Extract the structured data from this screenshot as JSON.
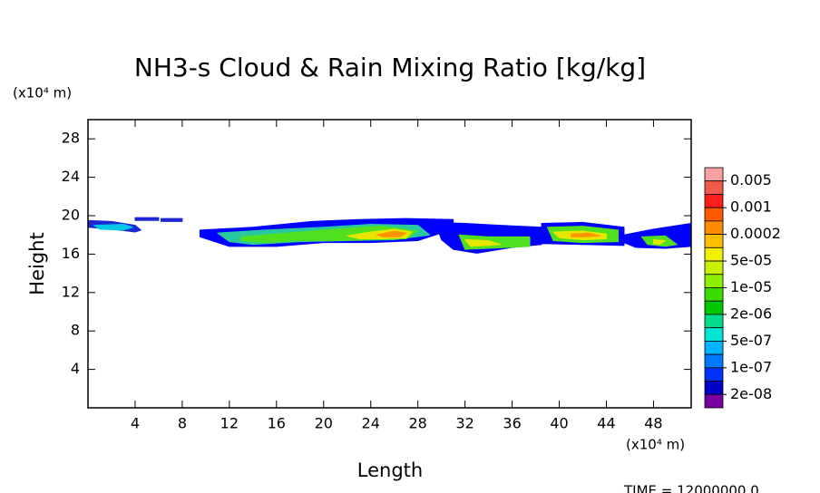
{
  "chart_data": {
    "type": "contour",
    "title": "NH3-s Cloud & Rain Mixing Ratio [kg/kg]",
    "x_label": "Length",
    "y_label": "Height",
    "x_unit": "(x10⁴ m)",
    "y_unit": "(x10⁴ m)",
    "footer": "TIME = 12000000.0",
    "xlim": [
      0,
      51.2
    ],
    "ylim": [
      0,
      30
    ],
    "xticks": [
      4,
      8,
      12,
      16,
      20,
      24,
      28,
      32,
      36,
      40,
      44,
      48
    ],
    "yticks": [
      4,
      8,
      12,
      16,
      20,
      24,
      28
    ],
    "colorbar": {
      "colors": [
        "#f8a0a0",
        "#f05a4a",
        "#ff1e1e",
        "#ff5a00",
        "#ff8c00",
        "#ffbe00",
        "#f0f000",
        "#c8f000",
        "#8cf000",
        "#3cdc00",
        "#00c800",
        "#00dc8c",
        "#00e6d2",
        "#00b4ff",
        "#0078ff",
        "#0032ff",
        "#0000c8",
        "#7800a0"
      ],
      "levels": [
        0.005,
        0.001,
        0.0002,
        {
          "value": 5e-05,
          "label": "5e-05"
        },
        {
          "value": 1e-05,
          "label": "1e-05"
        },
        {
          "value": 2e-06,
          "label": "2e-06"
        },
        {
          "value": 5e-07,
          "label": "5e-07"
        },
        {
          "value": 1e-07,
          "label": "1e-07"
        },
        {
          "value": 2e-08,
          "label": "2e-08"
        }
      ]
    },
    "shapes": [
      {
        "color": "#1e28d2",
        "x": [
          0,
          2,
          4,
          4.5,
          4,
          2,
          0
        ],
        "y": [
          19.5,
          19.4,
          19,
          18.5,
          18.3,
          18.6,
          18.8
        ]
      },
      {
        "color": "#00c8e6",
        "x": [
          0.5,
          3,
          3.8,
          3,
          1
        ],
        "y": [
          19,
          19.1,
          18.8,
          18.5,
          18.6
        ]
      },
      {
        "color": "#1e28d2",
        "x": [
          4,
          6,
          6,
          4
        ],
        "y": [
          19.8,
          19.8,
          19.5,
          19.5
        ]
      },
      {
        "color": "#1e28d2",
        "x": [
          6.2,
          8,
          8,
          6.2
        ],
        "y": [
          19.7,
          19.7,
          19.4,
          19.4
        ]
      },
      {
        "color": "#0000ff",
        "x": [
          9.5,
          14,
          19,
          23,
          27,
          31,
          31,
          28,
          24,
          20,
          16,
          12,
          9.5
        ],
        "y": [
          18.5,
          18.8,
          19.4,
          19.6,
          19.7,
          19.6,
          18.6,
          17.4,
          17.2,
          17.2,
          16.8,
          16.8,
          17.8
        ]
      },
      {
        "color": "#28c8a0",
        "x": [
          11,
          15,
          20,
          24,
          28,
          29,
          26,
          22,
          18,
          14,
          12
        ],
        "y": [
          18.2,
          18.5,
          18.8,
          19.1,
          19,
          18,
          17.5,
          17.4,
          17.3,
          17,
          17.3
        ]
      },
      {
        "color": "#50e020",
        "x": [
          13,
          16,
          19,
          22,
          25,
          28,
          27,
          24,
          21,
          18,
          15,
          13
        ],
        "y": [
          17.8,
          18.1,
          18.4,
          18.7,
          18.9,
          18.4,
          17.6,
          17.5,
          17.4,
          17.4,
          17.2,
          17.4
        ]
      },
      {
        "color": "#e6e600",
        "x": [
          22,
          24,
          26,
          27.5,
          27,
          25,
          23
        ],
        "y": [
          17.9,
          18.3,
          18.6,
          18.3,
          17.7,
          17.6,
          17.6
        ]
      },
      {
        "color": "#ff9600",
        "x": [
          24.5,
          26,
          27,
          26.5,
          25
        ],
        "y": [
          18,
          18.4,
          18.2,
          17.8,
          17.8
        ]
      },
      {
        "color": "#0000ff",
        "x": [
          29.5,
          32,
          35,
          38.5,
          38.5,
          36,
          33,
          31,
          30
        ],
        "y": [
          19.3,
          19.2,
          19,
          18.8,
          17,
          16.7,
          16.1,
          16.5,
          17.5
        ]
      },
      {
        "color": "#50e020",
        "x": [
          31.5,
          34,
          37.5,
          37.5,
          34,
          32
        ],
        "y": [
          18,
          17.8,
          17.8,
          16.8,
          16.6,
          16.5
        ]
      },
      {
        "color": "#e6e600",
        "x": [
          32,
          34,
          35,
          34,
          32.5
        ],
        "y": [
          17.5,
          17.4,
          17,
          16.9,
          16.8
        ]
      },
      {
        "color": "#0000ff",
        "x": [
          38.5,
          42,
          45.5,
          45.5,
          42,
          38.5
        ],
        "y": [
          19.2,
          19.3,
          18.8,
          16.9,
          17,
          17.1
        ]
      },
      {
        "color": "#50e020",
        "x": [
          39,
          42,
          45,
          45,
          42,
          39.5
        ],
        "y": [
          18.8,
          18.9,
          18.5,
          17.3,
          17.2,
          17.4
        ]
      },
      {
        "color": "#e6e600",
        "x": [
          39.5,
          42,
          44,
          44,
          42,
          40
        ],
        "y": [
          18.3,
          18.4,
          18.1,
          17.6,
          17.5,
          17.7
        ]
      },
      {
        "color": "#ff9600",
        "x": [
          41,
          42.5,
          43.5,
          42,
          41
        ],
        "y": [
          18.1,
          18.2,
          17.9,
          17.8,
          17.8
        ]
      },
      {
        "color": "#0000ff",
        "x": [
          45.5,
          48,
          51.2,
          51.2,
          49,
          46.5,
          45.5
        ],
        "y": [
          18,
          18.6,
          19.2,
          16.8,
          16.6,
          16.7,
          17.2
        ]
      },
      {
        "color": "#50e020",
        "x": [
          47,
          49,
          50,
          49,
          47.5
        ],
        "y": [
          17.8,
          17.9,
          17,
          16.8,
          17
        ]
      },
      {
        "color": "#e6e600",
        "x": [
          48,
          49,
          48.5,
          48
        ],
        "y": [
          17.5,
          17.4,
          17,
          17.1
        ]
      }
    ]
  }
}
